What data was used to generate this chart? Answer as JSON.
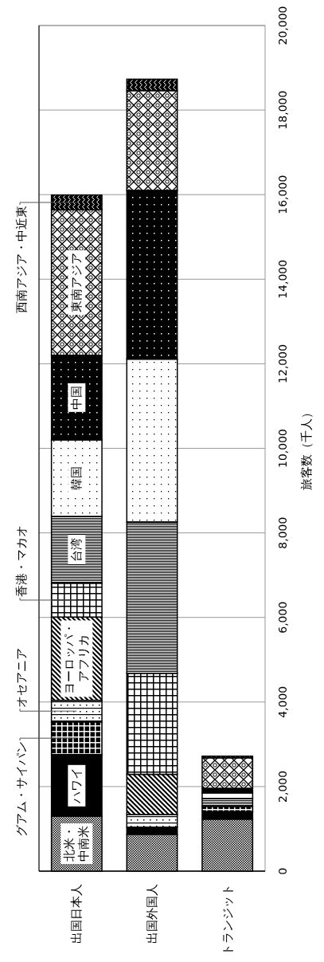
{
  "chart_data": {
    "type": "bar",
    "stacked": true,
    "grid": "y",
    "categories": [
      "出国日本人",
      "出国外国人",
      "トランジット"
    ],
    "ylabel": "旅客数（千人）",
    "ylim": [
      0,
      20000
    ],
    "yticks": [
      0,
      {
        "value": 2000,
        "label": "2,000"
      },
      {
        "value": 4000,
        "label": "4,000"
      },
      {
        "value": 6000,
        "label": "6,000"
      },
      {
        "value": 8000,
        "label": "8,000"
      },
      {
        "value": 10000,
        "label": "10,000"
      },
      {
        "value": 12000,
        "label": "12,000"
      },
      {
        "value": 14000,
        "label": "14,000"
      },
      {
        "value": 16000,
        "label": "16,000"
      },
      {
        "value": 18000,
        "label": "18,000"
      },
      {
        "value": 20000,
        "label": "20,000"
      }
    ],
    "series": [
      {
        "name": "北米・中南米",
        "color": "#000000",
        "values": [
          1300,
          870,
          1230
        ]
      },
      {
        "name": "ハワイ",
        "color": "#000000",
        "values": [
          1460,
          170,
          180
        ]
      },
      {
        "name": "グアム・サイパン",
        "color": "#000000",
        "values": [
          770,
          null,
          120
        ]
      },
      {
        "name": "オセアニア",
        "color": "#000000",
        "values": [
          510,
          300,
          null
        ]
      },
      {
        "name": "ヨーロッパ・アフリカ",
        "color": "#000000",
        "values": [
          1970,
          950,
          null
        ]
      },
      {
        "name": "香港・マカオ",
        "color": "#000000",
        "values": [
          800,
          2390,
          null
        ]
      },
      {
        "name": "台湾",
        "color": "#000000",
        "values": [
          1580,
          3580,
          190
        ]
      },
      {
        "name": "韓国",
        "color": "#000000",
        "values": [
          1810,
          3850,
          130
        ]
      },
      {
        "name": "中国",
        "color": "#000000",
        "values": [
          2000,
          3990,
          110
        ]
      },
      {
        "name": "東南アジア",
        "color": "#000000",
        "values": [
          3440,
          2360,
          720
        ]
      },
      {
        "name": "西南アジア・中近東",
        "color": "#000000",
        "values": [
          350,
          270,
          40
        ]
      }
    ]
  }
}
